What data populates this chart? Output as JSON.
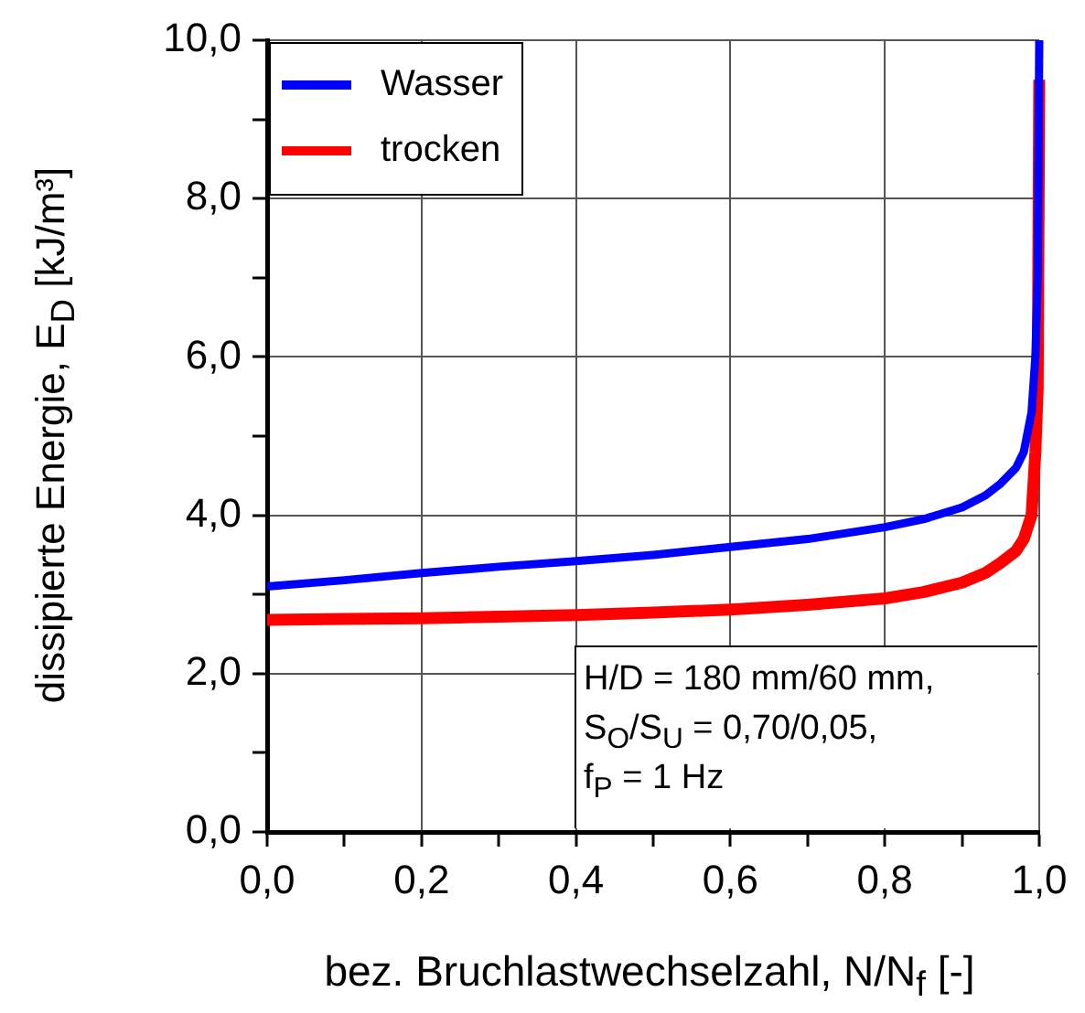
{
  "chart_data": {
    "type": "line",
    "xlabel": "bez. Bruchlastwechselzahl, N/N$_{f}$ [-]",
    "ylabel": "dissipierte Energie, E$_{D}$ [kJ/m³]",
    "series": [
      {
        "name": "Wasser",
        "color": "#0000ff",
        "x": [
          0,
          0.1,
          0.2,
          0.3,
          0.4,
          0.5,
          0.6,
          0.7,
          0.8,
          0.85,
          0.9,
          0.93,
          0.95,
          0.97,
          0.98,
          0.99,
          0.995,
          0.998,
          1.0
        ],
        "values": [
          3.1,
          3.18,
          3.27,
          3.35,
          3.42,
          3.5,
          3.6,
          3.7,
          3.85,
          3.95,
          4.1,
          4.25,
          4.4,
          4.6,
          4.8,
          5.3,
          6.0,
          7.0,
          10.0
        ]
      },
      {
        "name": "trocken",
        "color": "#ff0000",
        "x": [
          0,
          0.1,
          0.2,
          0.3,
          0.4,
          0.5,
          0.6,
          0.7,
          0.8,
          0.85,
          0.9,
          0.93,
          0.95,
          0.97,
          0.98,
          0.99,
          0.995,
          0.998,
          1.0
        ],
        "values": [
          2.68,
          2.69,
          2.7,
          2.72,
          2.74,
          2.77,
          2.81,
          2.87,
          2.95,
          3.03,
          3.15,
          3.27,
          3.4,
          3.55,
          3.7,
          4.0,
          4.8,
          5.6,
          9.5
        ]
      }
    ],
    "xlim": [
      0,
      1
    ],
    "ylim": [
      0,
      10
    ],
    "xticks": [
      {
        "value": 0,
        "label": "0,0"
      },
      {
        "value": 0.1,
        "label": null
      },
      {
        "value": 0.2,
        "label": "0,2"
      },
      {
        "value": 0.3,
        "label": null
      },
      {
        "value": 0.4,
        "label": "0,4"
      },
      {
        "value": 0.5,
        "label": null
      },
      {
        "value": 0.6,
        "label": "0,6"
      },
      {
        "value": 0.7,
        "label": null
      },
      {
        "value": 0.8,
        "label": "0,8"
      },
      {
        "value": 0.9,
        "label": null
      },
      {
        "value": 1,
        "label": "1,0"
      }
    ],
    "yticks": [
      {
        "value": 0,
        "label": "0,0"
      },
      {
        "value": 1,
        "label": null
      },
      {
        "value": 2,
        "label": "2,0"
      },
      {
        "value": 3,
        "label": null
      },
      {
        "value": 4,
        "label": "4,0"
      },
      {
        "value": 5,
        "label": null
      },
      {
        "value": 6,
        "label": "6,0"
      },
      {
        "value": 7,
        "label": null
      },
      {
        "value": 8,
        "label": "8,0"
      },
      {
        "value": 9,
        "label": null
      },
      {
        "value": 10,
        "label": "10,0"
      }
    ],
    "grid": true,
    "legend": "top left",
    "marker": "none",
    "line_style": "solid",
    "annotations": [
      "H/D = 180 mm/60 mm,",
      "S$_{O}$/S$_{U}$ = 0,70/0,05,",
      "f$_{P}$ = 1 Hz"
    ]
  }
}
